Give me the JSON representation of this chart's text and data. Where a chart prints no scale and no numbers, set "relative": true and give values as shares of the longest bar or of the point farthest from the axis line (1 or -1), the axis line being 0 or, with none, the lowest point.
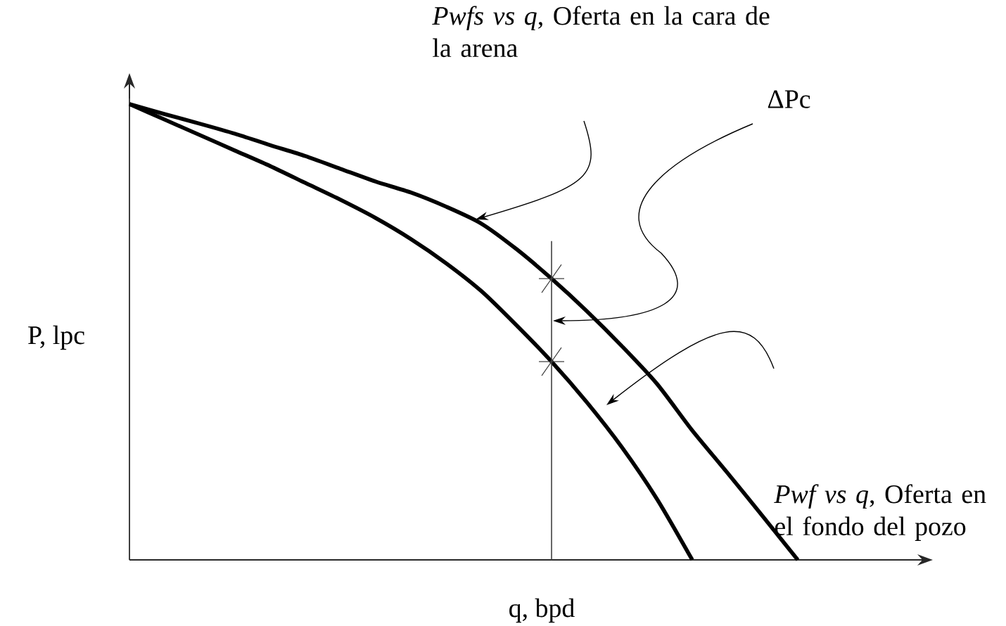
{
  "chart_data": {
    "type": "line",
    "relative": true,
    "xlabel": "q, bpd",
    "ylabel": "P, lpc",
    "categories": [
      null,
      null,
      null,
      null,
      null,
      null,
      null,
      null,
      null,
      null,
      null,
      null,
      null,
      null,
      null,
      null,
      null,
      null,
      null,
      null
    ],
    "series": [
      {
        "color": "#000000",
        "values": [
          1.0,
          0.978,
          0.957,
          0.935,
          0.91,
          0.886,
          0.858,
          0.83,
          0.806,
          0.775,
          0.738,
          0.682,
          0.617,
          0.546,
          0.469,
          0.386,
          0.284,
          0.191,
          0.096,
          0.0
        ]
      },
      {
        "color": "#000000",
        "values": [
          1.0,
          0.966,
          0.932,
          0.898,
          0.864,
          0.827,
          0.79,
          0.75,
          0.704,
          0.651,
          0.59,
          0.515,
          0.435,
          0.346,
          0.247,
          0.133,
          0.0,
          null,
          null,
          null
        ]
      }
    ],
    "annotations": [
      "*Pwfs vs q*, Oferta en la cara de la arena",
      "ΔPc",
      "*Pwf vs q*, Oferta en el fondo del pozo"
    ],
    "line_style": "solid"
  }
}
